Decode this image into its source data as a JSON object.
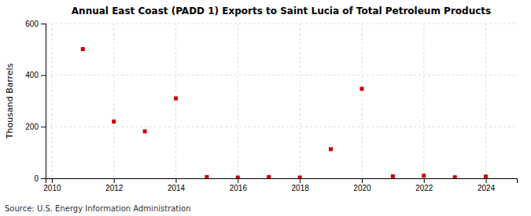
{
  "chart_data": {
    "type": "scatter",
    "title": "Annual East Coast (PADD 1) Exports to Saint Lucia of Total Petroleum Products",
    "ylabel": "Thousand Barrels",
    "source": "Source: U.S. Energy Information Administration",
    "x": [
      2011,
      2012,
      2013,
      2014,
      2015,
      2016,
      2017,
      2018,
      2019,
      2020,
      2021,
      2022,
      2023,
      2024
    ],
    "values": [
      501,
      220,
      182,
      310,
      5,
      3,
      5,
      3,
      113,
      347,
      8,
      10,
      4,
      7
    ],
    "color": "#cc0000",
    "marker": "square",
    "xlim": [
      2009.8,
      2025.0
    ],
    "xticks": [
      2010,
      2012,
      2014,
      2016,
      2018,
      2020,
      2022,
      2024
    ],
    "ylim": [
      0,
      600
    ],
    "yticks": [
      0,
      200,
      400,
      600
    ],
    "grid": true
  }
}
